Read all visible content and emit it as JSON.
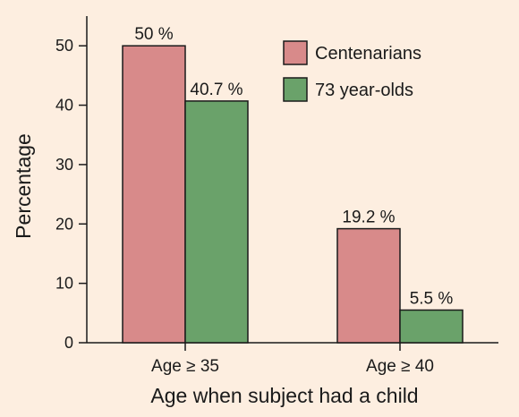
{
  "chart_data": {
    "type": "bar",
    "categories": [
      "Age ≥ 35",
      "Age ≥ 40"
    ],
    "series": [
      {
        "name": "Centenarians",
        "values": [
          50,
          19.2
        ],
        "labels": [
          "50 %",
          "19.2 %"
        ],
        "color": "#d88a8a"
      },
      {
        "name": "73 year-olds",
        "values": [
          40.7,
          5.5
        ],
        "labels": [
          "40.7 %",
          "5.5 %"
        ],
        "color": "#6aa26a"
      }
    ],
    "title": "",
    "xlabel": "Age when subject had a child",
    "ylabel": "Percentage",
    "ylim": [
      0,
      55
    ],
    "yticks": [
      0,
      10,
      20,
      30,
      40,
      50
    ],
    "grid": false,
    "legend_position": "top-right",
    "background_color": "#fdeee0",
    "edge_color": "#1a1a1a"
  }
}
